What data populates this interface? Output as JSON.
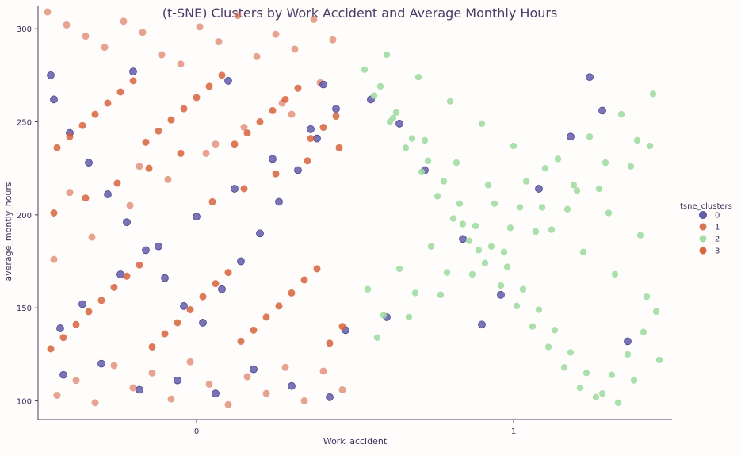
{
  "chart_data": {
    "type": "scatter",
    "title": "(t-SNE) Clusters by Work Accident and Average Monthly Hours",
    "xlabel": "Work_accident",
    "ylabel": "average_montly_hours",
    "x_categories": [
      "0",
      "1"
    ],
    "ylim": [
      90,
      312
    ],
    "y_ticks": [
      100,
      150,
      200,
      250,
      300
    ],
    "legend": {
      "title": "tsne_clusters",
      "placement": "right",
      "entries": [
        "0",
        "1",
        "2",
        "3"
      ]
    },
    "colors": {
      "cluster_0": "#5b56a8",
      "cluster_1": "#d86b4d",
      "cluster_2": "#9fdca2",
      "cluster_3": "#d55d35"
    },
    "series": [
      {
        "name": "0",
        "x": [
          -0.45,
          -0.4,
          -0.34,
          -0.28,
          -0.22,
          -0.16,
          -0.1,
          -0.04,
          0.02,
          0.08,
          0.14,
          0.2,
          0.26,
          0.32,
          0.38,
          0.44,
          -0.43,
          -0.36,
          -0.24,
          -0.12,
          0.0,
          0.12,
          0.24,
          0.36,
          0.47,
          -0.42,
          -0.3,
          -0.18,
          -0.06,
          0.06,
          0.18,
          0.3,
          0.42,
          -0.46,
          -0.2,
          0.1,
          0.4,
          0.55,
          0.64,
          0.72,
          0.84,
          0.96,
          1.08,
          1.18,
          1.28,
          1.36,
          0.6,
          0.9,
          1.24
        ],
        "y": [
          262,
          244,
          228,
          211,
          196,
          181,
          166,
          151,
          142,
          160,
          175,
          190,
          207,
          224,
          241,
          257,
          139,
          152,
          168,
          183,
          199,
          214,
          230,
          246,
          138,
          114,
          120,
          106,
          111,
          104,
          117,
          108,
          102,
          275,
          277,
          272,
          270,
          262,
          249,
          224,
          187,
          157,
          214,
          242,
          256,
          132,
          145,
          141,
          274
        ]
      },
      {
        "name": "1",
        "x": [
          -0.47,
          -0.41,
          -0.35,
          -0.29,
          -0.23,
          -0.17,
          -0.11,
          -0.05,
          0.01,
          0.07,
          0.13,
          0.19,
          0.25,
          0.31,
          0.37,
          0.43,
          -0.44,
          -0.38,
          -0.32,
          -0.26,
          -0.2,
          -0.14,
          -0.08,
          -0.02,
          0.04,
          0.1,
          0.16,
          0.22,
          0.28,
          0.34,
          0.4,
          0.46,
          -0.45,
          -0.33,
          -0.21,
          -0.09,
          0.03,
          0.15,
          0.27,
          0.39,
          -0.4,
          -0.18,
          0.06,
          0.3
        ],
        "y": [
          309,
          302,
          296,
          290,
          304,
          298,
          286,
          281,
          301,
          293,
          307,
          285,
          297,
          289,
          305,
          294,
          103,
          111,
          99,
          119,
          107,
          115,
          101,
          121,
          109,
          98,
          113,
          104,
          118,
          100,
          116,
          106,
          176,
          188,
          205,
          219,
          233,
          247,
          260,
          271,
          212,
          226,
          238,
          254
        ]
      },
      {
        "name": "2",
        "x": [
          0.53,
          0.58,
          0.63,
          0.68,
          0.73,
          0.78,
          0.83,
          0.88,
          0.93,
          0.98,
          1.03,
          1.08,
          1.13,
          1.18,
          1.23,
          1.28,
          1.33,
          1.38,
          1.46,
          0.56,
          0.61,
          0.66,
          0.71,
          0.76,
          0.81,
          0.86,
          0.91,
          0.96,
          1.01,
          1.06,
          1.11,
          1.16,
          1.21,
          1.26,
          1.31,
          1.36,
          1.41,
          1.45,
          0.54,
          0.64,
          0.74,
          0.84,
          0.94,
          1.04,
          1.14,
          1.24,
          1.34,
          1.44,
          0.59,
          0.69,
          0.79,
          0.89,
          0.99,
          1.09,
          1.19,
          1.29,
          1.39,
          0.57,
          0.67,
          0.77,
          0.87,
          0.97,
          1.07,
          1.17,
          1.27,
          1.37,
          1.43,
          0.62,
          0.72,
          0.82,
          0.92,
          1.02,
          1.12,
          1.22,
          1.32,
          1.42,
          0.6,
          0.7,
          0.8,
          0.9,
          1.0,
          1.1,
          1.2,
          1.3,
          1.4
        ],
        "y": [
          278,
          269,
          255,
          241,
          229,
          218,
          206,
          194,
          183,
          172,
          160,
          149,
          138,
          126,
          115,
          104,
          99,
          111,
          122,
          264,
          250,
          236,
          223,
          210,
          198,
          186,
          174,
          162,
          151,
          140,
          129,
          118,
          107,
          102,
          114,
          125,
          137,
          148,
          160,
          171,
          183,
          195,
          206,
          218,
          230,
          242,
          254,
          265,
          146,
          158,
          169,
          181,
          193,
          204,
          216,
          228,
          240,
          134,
          145,
          157,
          168,
          180,
          191,
          203,
          214,
          226,
          237,
          252,
          240,
          228,
          216,
          204,
          192,
          180,
          168,
          156,
          286,
          274,
          261,
          249,
          237,
          225,
          213,
          201,
          189
        ]
      },
      {
        "name": "3",
        "x": [
          -0.46,
          -0.42,
          -0.38,
          -0.34,
          -0.3,
          -0.26,
          -0.22,
          -0.18,
          -0.14,
          -0.1,
          -0.06,
          -0.02,
          0.02,
          0.06,
          0.1,
          0.14,
          0.18,
          0.22,
          0.26,
          0.3,
          0.34,
          0.38,
          0.42,
          0.46,
          -0.44,
          -0.4,
          -0.36,
          -0.32,
          -0.28,
          -0.24,
          -0.2,
          -0.16,
          -0.12,
          -0.08,
          -0.04,
          0.0,
          0.04,
          0.08,
          0.12,
          0.16,
          0.2,
          0.24,
          0.28,
          0.32,
          0.36,
          0.4,
          0.44,
          -0.45,
          -0.35,
          -0.25,
          -0.15,
          -0.05,
          0.05,
          0.15,
          0.25,
          0.35,
          0.45
        ],
        "y": [
          128,
          134,
          141,
          148,
          154,
          161,
          167,
          173,
          129,
          136,
          142,
          149,
          156,
          163,
          169,
          132,
          138,
          145,
          151,
          158,
          165,
          171,
          131,
          140,
          236,
          242,
          248,
          254,
          260,
          266,
          272,
          239,
          245,
          251,
          257,
          263,
          269,
          275,
          238,
          244,
          250,
          256,
          262,
          268,
          241,
          247,
          253,
          201,
          209,
          217,
          225,
          233,
          207,
          214,
          222,
          229,
          236
        ]
      }
    ]
  }
}
